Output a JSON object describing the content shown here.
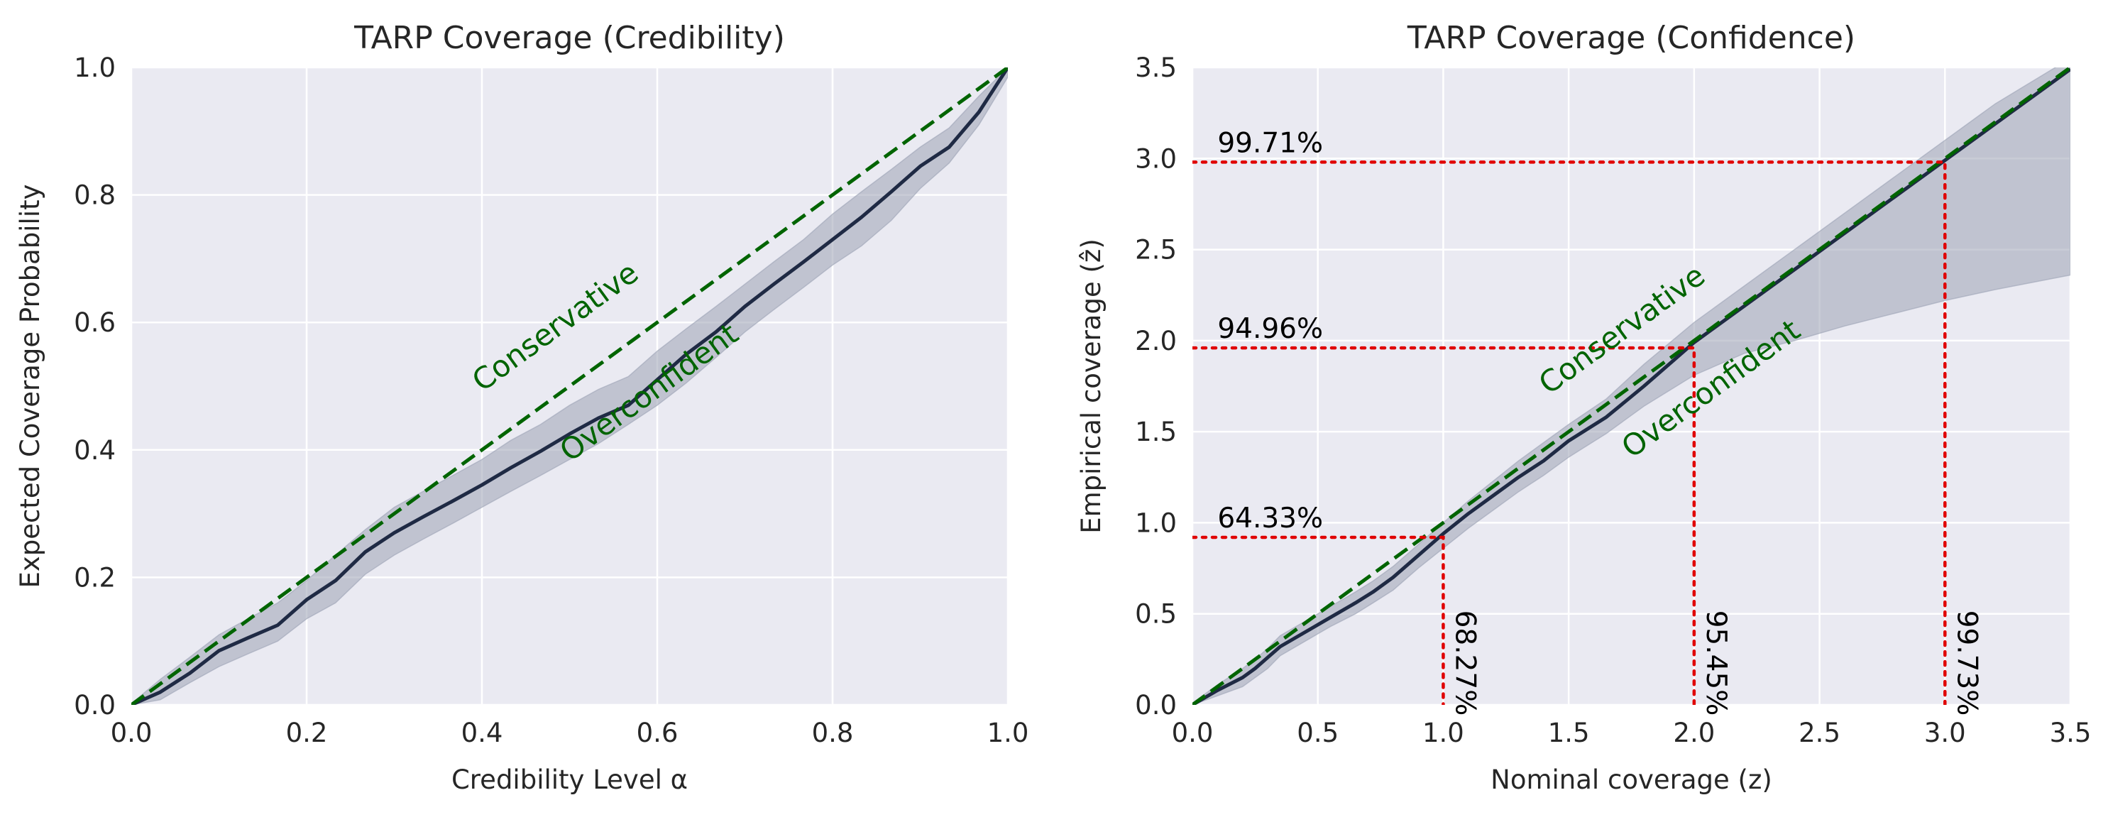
{
  "chart_data": [
    {
      "type": "line",
      "title": "TARP Coverage (Credibility)",
      "xlabel": "Credibility Level α",
      "ylabel": "Expected Coverage Probability",
      "xlim": [
        0,
        1
      ],
      "ylim": [
        0,
        1
      ],
      "xticks": [
        "0.0",
        "0.2",
        "0.4",
        "0.6",
        "0.8",
        "1.0"
      ],
      "yticks": [
        "0.0",
        "0.2",
        "0.4",
        "0.6",
        "0.8",
        "1.0"
      ],
      "grid": true,
      "reference_line": {
        "x": [
          0,
          1
        ],
        "y": [
          0,
          1
        ],
        "style": "dashed",
        "color": "#006400"
      },
      "series": [
        {
          "x": [
            0,
            0.033,
            0.067,
            0.1,
            0.133,
            0.167,
            0.2,
            0.233,
            0.267,
            0.3,
            0.333,
            0.367,
            0.4,
            0.433,
            0.467,
            0.5,
            0.533,
            0.567,
            0.6,
            0.633,
            0.667,
            0.7,
            0.733,
            0.767,
            0.8,
            0.833,
            0.867,
            0.9,
            0.933,
            0.967,
            1.0
          ],
          "y": [
            0,
            0.02,
            0.05,
            0.085,
            0.105,
            0.125,
            0.165,
            0.195,
            0.24,
            0.27,
            0.295,
            0.32,
            0.345,
            0.372,
            0.398,
            0.425,
            0.45,
            0.47,
            0.51,
            0.55,
            0.585,
            0.625,
            0.66,
            0.695,
            0.73,
            0.765,
            0.805,
            0.845,
            0.875,
            0.93,
            1.0
          ],
          "lower": [
            0,
            0.008,
            0.035,
            0.06,
            0.08,
            0.1,
            0.135,
            0.16,
            0.205,
            0.235,
            0.26,
            0.285,
            0.31,
            0.335,
            0.36,
            0.385,
            0.41,
            0.44,
            0.47,
            0.505,
            0.545,
            0.585,
            0.62,
            0.655,
            0.69,
            0.72,
            0.76,
            0.81,
            0.85,
            0.91,
            0.985
          ],
          "upper": [
            0.002,
            0.04,
            0.075,
            0.11,
            0.135,
            0.16,
            0.195,
            0.235,
            0.275,
            0.31,
            0.335,
            0.36,
            0.385,
            0.415,
            0.44,
            0.47,
            0.495,
            0.515,
            0.555,
            0.59,
            0.625,
            0.66,
            0.695,
            0.73,
            0.77,
            0.805,
            0.84,
            0.875,
            0.905,
            0.955,
            1.0
          ],
          "color": "#1f2a44",
          "band_color": "#9da3b5"
        }
      ],
      "annotations": [
        {
          "text": "Conservative",
          "x": 0.4,
          "y": 0.49,
          "rotation": -36,
          "color": "#006400"
        },
        {
          "text": "Overconfident",
          "x": 0.5,
          "y": 0.38,
          "rotation": -36,
          "color": "#006400"
        }
      ]
    },
    {
      "type": "line",
      "title": "TARP Coverage (Confidence)",
      "xlabel": "Nominal coverage (z)",
      "ylabel": "Empirical coverage (ẑ)",
      "xlim": [
        0,
        3.5
      ],
      "ylim": [
        0,
        3.5
      ],
      "xticks": [
        "0.0",
        "0.5",
        "1.0",
        "1.5",
        "2.0",
        "2.5",
        "3.0",
        "3.5"
      ],
      "yticks": [
        "0.0",
        "0.5",
        "1.0",
        "1.5",
        "2.0",
        "2.5",
        "3.0",
        "3.5"
      ],
      "grid": true,
      "reference_line": {
        "x": [
          0,
          3.5
        ],
        "y": [
          0,
          3.5
        ],
        "style": "dashed",
        "color": "#006400"
      },
      "series": [
        {
          "x": [
            0,
            0.1,
            0.2,
            0.25,
            0.3,
            0.35,
            0.45,
            0.55,
            0.65,
            0.72,
            0.8,
            0.9,
            1.0,
            1.1,
            1.2,
            1.3,
            1.4,
            1.5,
            1.65,
            1.8,
            2.0,
            2.2,
            2.4,
            2.6,
            2.8,
            3.0,
            3.2,
            3.5
          ],
          "y": [
            0,
            0.08,
            0.15,
            0.2,
            0.26,
            0.32,
            0.4,
            0.48,
            0.56,
            0.62,
            0.7,
            0.82,
            0.94,
            1.05,
            1.15,
            1.25,
            1.34,
            1.45,
            1.58,
            1.75,
            1.99,
            2.19,
            2.39,
            2.59,
            2.79,
            2.99,
            3.19,
            3.49
          ],
          "lower": [
            0,
            0.05,
            0.1,
            0.15,
            0.2,
            0.27,
            0.35,
            0.43,
            0.5,
            0.56,
            0.63,
            0.75,
            0.86,
            0.97,
            1.07,
            1.17,
            1.26,
            1.36,
            1.49,
            1.64,
            1.81,
            1.93,
            2.0,
            2.08,
            2.15,
            2.22,
            2.28,
            2.36
          ],
          "upper": [
            0.01,
            0.11,
            0.2,
            0.25,
            0.31,
            0.38,
            0.46,
            0.54,
            0.62,
            0.68,
            0.76,
            0.88,
            1.0,
            1.12,
            1.23,
            1.34,
            1.44,
            1.54,
            1.68,
            1.87,
            2.1,
            2.3,
            2.5,
            2.7,
            2.9,
            3.1,
            3.3,
            3.55
          ],
          "color": "#1f2a44",
          "band_color": "#9da3b5"
        }
      ],
      "reference_markers": [
        {
          "x": 1.0,
          "y": 0.92,
          "y_label": "64.33%",
          "x_label": "68.27%"
        },
        {
          "x": 2.0,
          "y": 1.96,
          "y_label": "94.96%",
          "x_label": "95.45%"
        },
        {
          "x": 3.0,
          "y": 2.98,
          "y_label": "99.71%",
          "x_label": "99.73%"
        }
      ],
      "marker_color": "#e00000",
      "annotations": [
        {
          "text": "Conservative",
          "x": 1.42,
          "y": 1.7,
          "rotation": -36,
          "color": "#006400"
        },
        {
          "text": "Overconfident",
          "x": 1.75,
          "y": 1.35,
          "rotation": -36,
          "color": "#006400"
        }
      ]
    }
  ]
}
